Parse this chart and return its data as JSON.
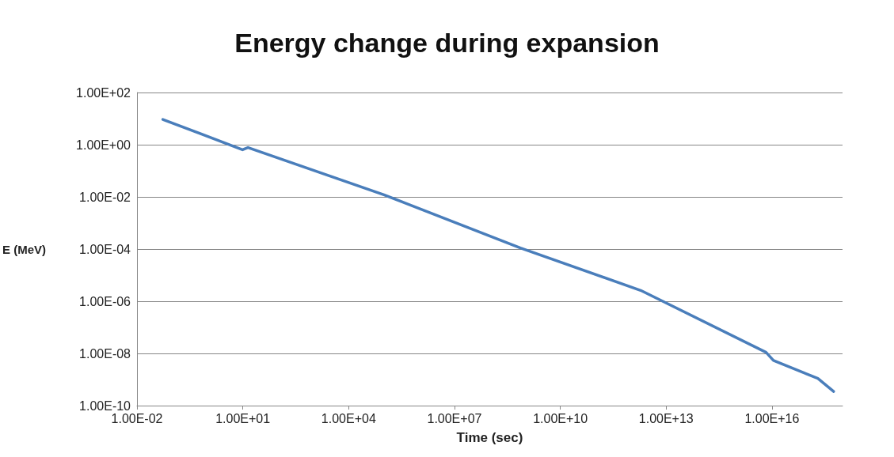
{
  "chart_data": {
    "type": "line",
    "title": "Energy change during expansion",
    "xlabel": "Time (sec)",
    "ylabel": "E (MeV)",
    "x": [
      0.054,
      9.8,
      14,
      100000.0,
      740000000.0,
      1900000000000.0,
      6800000000000000.0,
      1.1e+16,
      2e+17,
      5.6e+17
    ],
    "series": [
      {
        "color": "#4a7ebb",
        "values": [
          9.3,
          0.64,
          0.78,
          0.012,
          0.00011,
          2.6e-06,
          1.1e-08,
          5.4e-09,
          1.1e-09,
          3.5e-10
        ]
      }
    ],
    "log": "xy",
    "xlim": [
      0.01,
      1e+18
    ],
    "ylim": [
      1e-10,
      100
    ],
    "xticks": [
      {
        "value": 0.01,
        "label": "1.00E-02"
      },
      {
        "value": 10,
        "label": "1.00E+01"
      },
      {
        "value": 10000,
        "label": "1.00E+04"
      },
      {
        "value": 10000000.0,
        "label": "1.00E+07"
      },
      {
        "value": 10000000000.0,
        "label": "1.00E+10"
      },
      {
        "value": 10000000000000.0,
        "label": "1.00E+13"
      },
      {
        "value": 1e+16,
        "label": "1.00E+16"
      }
    ],
    "yticks": [
      {
        "value": 1e-10,
        "label": "1.00E-10"
      },
      {
        "value": 1e-08,
        "label": "1.00E-08"
      },
      {
        "value": 1e-06,
        "label": "1.00E-06"
      },
      {
        "value": 0.0001,
        "label": "1.00E-04"
      },
      {
        "value": 0.01,
        "label": "1.00E-02"
      },
      {
        "value": 1,
        "label": "1.00E+00"
      },
      {
        "value": 100,
        "label": "1.00E+02"
      }
    ],
    "grid": "y",
    "marker": "none",
    "line_style": "solid"
  }
}
